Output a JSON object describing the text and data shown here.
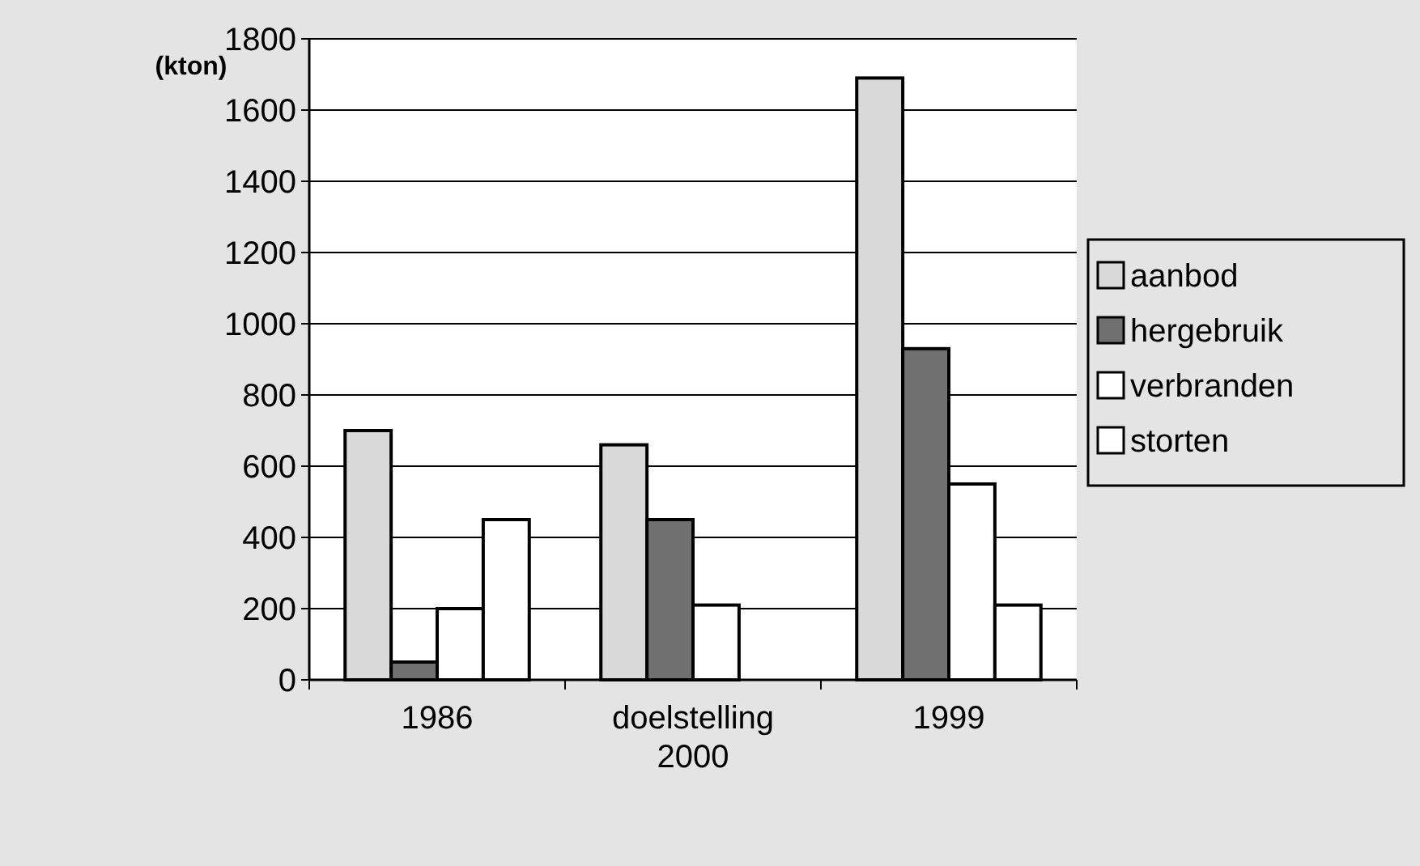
{
  "chart_data": {
    "type": "bar",
    "ylabel": "(kton)",
    "categories": [
      "1986",
      "doelstelling 2000",
      "1999"
    ],
    "series": [
      {
        "name": "aanbod",
        "color": "#d9d9d9",
        "values": [
          700,
          660,
          1690
        ]
      },
      {
        "name": "hergebruik",
        "color": "#707070",
        "values": [
          50,
          450,
          930
        ]
      },
      {
        "name": "verbranden",
        "color": "#ffffff",
        "values": [
          200,
          210,
          550
        ]
      },
      {
        "name": "storten",
        "color": "#ffffff",
        "values": [
          450,
          null,
          210
        ]
      }
    ],
    "ylim": [
      0,
      1800
    ],
    "yticks": [
      0,
      200,
      400,
      600,
      800,
      1000,
      1200,
      1400,
      1600,
      1800
    ],
    "grid": "y",
    "legend": "right"
  }
}
